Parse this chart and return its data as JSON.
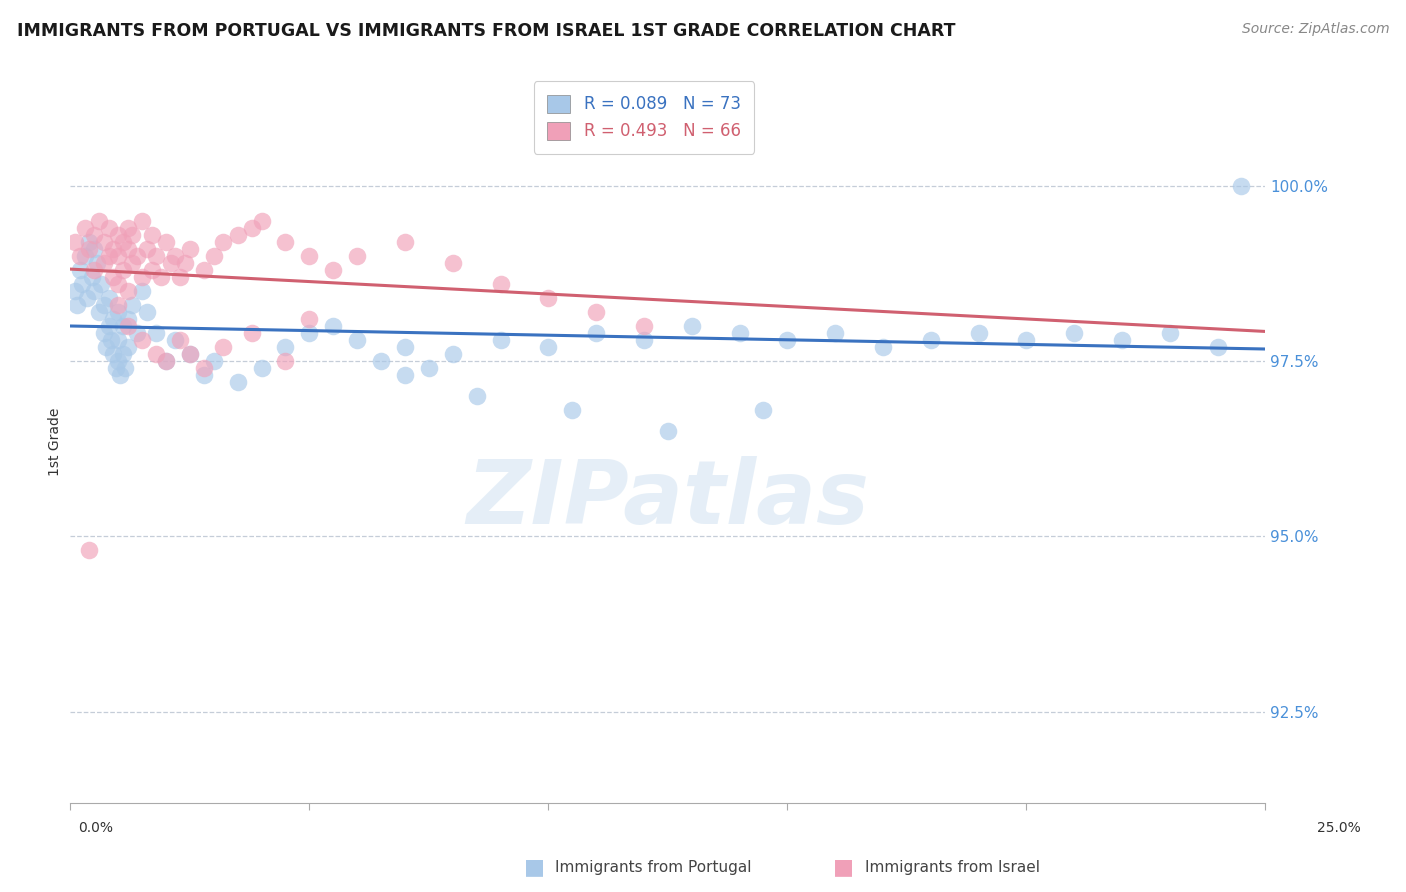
{
  "title": "IMMIGRANTS FROM PORTUGAL VS IMMIGRANTS FROM ISRAEL 1ST GRADE CORRELATION CHART",
  "source": "Source: ZipAtlas.com",
  "ylabel": "1st Grade",
  "ytick_vals": [
    92.5,
    95.0,
    97.5,
    100.0
  ],
  "ytick_labels": [
    "92.5%",
    "95.0%",
    "97.5%",
    "100.0%"
  ],
  "xlim": [
    0.0,
    25.0
  ],
  "ylim": [
    91.2,
    101.5
  ],
  "legend_blue_r": "R = 0.089",
  "legend_blue_n": "N = 73",
  "legend_pink_r": "R = 0.493",
  "legend_pink_n": "N = 66",
  "blue_scatter_color": "#A8C8E8",
  "pink_scatter_color": "#F0A0B8",
  "blue_line_color": "#3A72C0",
  "pink_line_color": "#D06070",
  "legend_blue_label": "Immigrants from Portugal",
  "legend_pink_label": "Immigrants from Israel",
  "watermark": "ZIPatlas",
  "title_fontsize": 12.5,
  "source_fontsize": 10,
  "ylabel_fontsize": 10,
  "tick_fontsize": 11,
  "legend_fontsize": 12,
  "portugal_x": [
    0.1,
    0.15,
    0.2,
    0.25,
    0.3,
    0.35,
    0.4,
    0.45,
    0.5,
    0.5,
    0.55,
    0.6,
    0.65,
    0.7,
    0.7,
    0.75,
    0.8,
    0.8,
    0.85,
    0.9,
    0.9,
    0.95,
    1.0,
    1.0,
    1.0,
    1.05,
    1.1,
    1.1,
    1.15,
    1.2,
    1.2,
    1.3,
    1.4,
    1.5,
    1.6,
    1.8,
    2.0,
    2.2,
    2.5,
    2.8,
    3.0,
    3.5,
    4.0,
    4.5,
    5.0,
    5.5,
    6.0,
    6.5,
    7.0,
    7.5,
    8.0,
    9.0,
    10.0,
    11.0,
    12.0,
    13.0,
    14.0,
    15.0,
    16.0,
    17.0,
    18.0,
    19.0,
    20.0,
    21.0,
    22.0,
    23.0,
    24.0,
    24.5,
    7.0,
    8.5,
    10.5,
    12.5,
    14.5
  ],
  "portugal_y": [
    98.5,
    98.3,
    98.8,
    98.6,
    99.0,
    98.4,
    99.2,
    98.7,
    98.5,
    99.1,
    98.9,
    98.2,
    98.6,
    97.9,
    98.3,
    97.7,
    98.0,
    98.4,
    97.8,
    97.6,
    98.1,
    97.4,
    97.8,
    98.2,
    97.5,
    97.3,
    97.6,
    98.0,
    97.4,
    97.7,
    98.1,
    98.3,
    97.9,
    98.5,
    98.2,
    97.9,
    97.5,
    97.8,
    97.6,
    97.3,
    97.5,
    97.2,
    97.4,
    97.7,
    97.9,
    98.0,
    97.8,
    97.5,
    97.7,
    97.4,
    97.6,
    97.8,
    97.7,
    97.9,
    97.8,
    98.0,
    97.9,
    97.8,
    97.9,
    97.7,
    97.8,
    97.9,
    97.8,
    97.9,
    97.8,
    97.9,
    97.7,
    100.0,
    97.3,
    97.0,
    96.8,
    96.5,
    96.8
  ],
  "israel_x": [
    0.1,
    0.2,
    0.3,
    0.4,
    0.5,
    0.5,
    0.6,
    0.7,
    0.7,
    0.8,
    0.8,
    0.9,
    0.9,
    1.0,
    1.0,
    1.0,
    1.1,
    1.1,
    1.2,
    1.2,
    1.2,
    1.3,
    1.3,
    1.4,
    1.5,
    1.5,
    1.6,
    1.7,
    1.7,
    1.8,
    1.9,
    2.0,
    2.1,
    2.2,
    2.3,
    2.4,
    2.5,
    2.8,
    3.0,
    3.2,
    3.5,
    3.8,
    4.0,
    4.5,
    5.0,
    5.5,
    6.0,
    7.0,
    8.0,
    9.0,
    10.0,
    11.0,
    12.0,
    1.0,
    1.2,
    1.5,
    1.8,
    2.0,
    2.3,
    2.5,
    2.8,
    3.2,
    3.8,
    5.0,
    4.5,
    0.4
  ],
  "israel_y": [
    99.2,
    99.0,
    99.4,
    99.1,
    99.3,
    98.8,
    99.5,
    99.2,
    98.9,
    99.0,
    99.4,
    98.7,
    99.1,
    99.3,
    98.6,
    99.0,
    98.8,
    99.2,
    98.5,
    99.1,
    99.4,
    98.9,
    99.3,
    99.0,
    99.5,
    98.7,
    99.1,
    98.8,
    99.3,
    99.0,
    98.7,
    99.2,
    98.9,
    99.0,
    98.7,
    98.9,
    99.1,
    98.8,
    99.0,
    99.2,
    99.3,
    99.4,
    99.5,
    99.2,
    99.0,
    98.8,
    99.0,
    99.2,
    98.9,
    98.6,
    98.4,
    98.2,
    98.0,
    98.3,
    98.0,
    97.8,
    97.6,
    97.5,
    97.8,
    97.6,
    97.4,
    97.7,
    97.9,
    98.1,
    97.5,
    94.8
  ]
}
